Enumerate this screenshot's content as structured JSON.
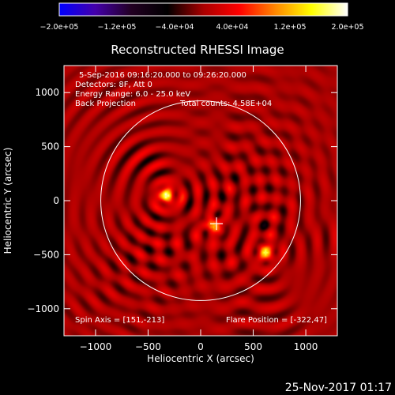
{
  "chart_data": {
    "type": "heatmap",
    "title": "Reconstructed RHESSI Image",
    "xlabel": "Heliocentric X (arcsec)",
    "ylabel": "Heliocentric Y (arcsec)",
    "xlim": [
      -1300,
      1300
    ],
    "ylim": [
      -1250,
      1250
    ],
    "x_ticks": [
      -1000,
      -500,
      0,
      500,
      1000
    ],
    "y_ticks": [
      -1000,
      -500,
      0,
      500,
      1000
    ],
    "x_tick_labels": [
      "−1000",
      "−500",
      "0",
      "500",
      "1000"
    ],
    "y_tick_labels": [
      "−1000",
      "−500",
      "0",
      "500",
      "1000"
    ],
    "colorbar": {
      "min": -200000,
      "max": 200000,
      "tick_labels": [
        "−2.0e+05",
        "−1.2e+05",
        "−4.0e+04",
        "4.0e+04",
        "1.2e+05",
        "2.0e+05"
      ],
      "colors": [
        "#0000ff",
        "#4400aa",
        "#220022",
        "#000000",
        "#aa0000",
        "#ff0000",
        "#ff8800",
        "#ffff00",
        "#ffffff"
      ]
    },
    "solar_disk_radius": 950,
    "sources": [
      {
        "x": -322,
        "y": 47,
        "peak": 180000
      },
      {
        "x": 620,
        "y": -480,
        "peak": 140000
      },
      {
        "x": 120,
        "y": -230,
        "peak": 120000
      }
    ],
    "spin_axis": [
      151,
      -213
    ],
    "flare_position": [
      -322,
      47
    ]
  },
  "annotations": {
    "time_range": "5-Sep-2016 09:16:20.000 to 09:26:20.000",
    "detectors": "Detectors: 8F, Att 0",
    "energy_range": "Energy Range: 6.0 - 25.0 keV",
    "method": "Back Projection",
    "total_counts": "Total counts: 4.58E+04",
    "spin_axis_label": "Spin Axis = [151,-213]",
    "flare_position_label": "Flare Position = [-322,47]"
  },
  "footer": {
    "timestamp": "25-Nov-2017 01:17"
  }
}
